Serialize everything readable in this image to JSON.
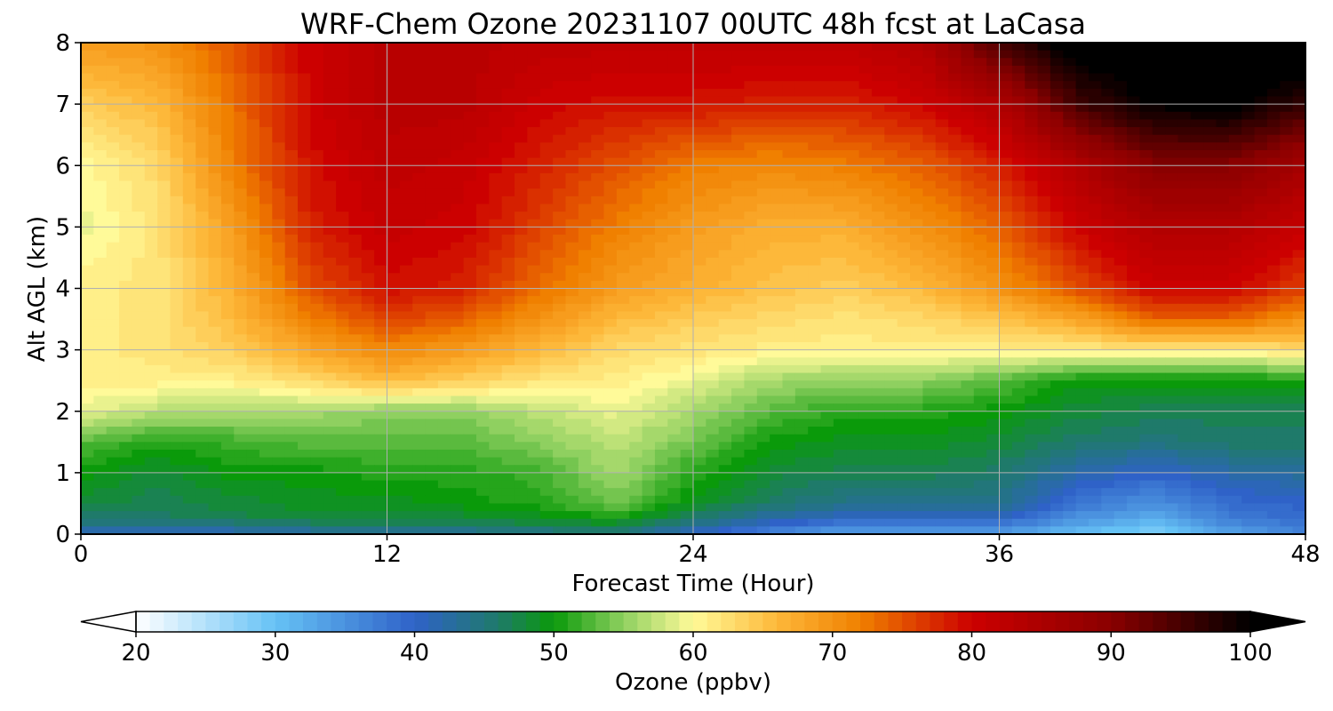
{
  "chart_data": {
    "type": "heatmap",
    "title": "WRF-Chem Ozone  20231107 00UTC 48h fcst at LaCasa",
    "xlabel": "Forecast Time (Hour)",
    "ylabel": "Alt AGL (km)",
    "xlim": [
      0,
      48
    ],
    "ylim": [
      0,
      8
    ],
    "xticks": [
      0,
      12,
      24,
      36,
      48
    ],
    "yticks": [
      0,
      1,
      2,
      3,
      4,
      5,
      6,
      7,
      8
    ],
    "grid": true,
    "colorbar": {
      "label": "Ozone  (ppbv)",
      "min": 20,
      "max": 100,
      "ticks": [
        20,
        30,
        40,
        50,
        60,
        70,
        80,
        90,
        100
      ],
      "extend": "both",
      "colors": [
        "#ffffff",
        "#66c2f5",
        "#2f62c8",
        "#1f7a6a",
        "#0a9a0a",
        "#8fd060",
        "#fffa99",
        "#fdb83a",
        "#f08000",
        "#cc0000",
        "#8a0000",
        "#000000"
      ],
      "stops": [
        20,
        30,
        40,
        46,
        50,
        55,
        60,
        66,
        72,
        80,
        90,
        100
      ]
    },
    "z_units": "ppbv",
    "x_hours": [
      0,
      3,
      6,
      9,
      12,
      15,
      18,
      21,
      24,
      27,
      30,
      33,
      36,
      39,
      42,
      45,
      48
    ],
    "y_km": [
      0,
      0.25,
      0.5,
      1,
      1.5,
      2,
      2.5,
      3,
      3.5,
      4,
      5,
      6,
      7,
      8
    ],
    "values": [
      [
        40,
        40,
        41,
        42,
        42,
        43,
        44,
        45,
        40,
        36,
        33,
        33,
        34,
        30,
        28,
        33,
        36
      ],
      [
        46,
        46,
        47,
        48,
        48,
        48,
        49,
        50,
        46,
        42,
        40,
        40,
        40,
        35,
        32,
        37,
        39
      ],
      [
        48,
        47,
        48,
        49,
        49,
        50,
        51,
        54,
        49,
        46,
        44,
        44,
        44,
        38,
        35,
        39,
        40
      ],
      [
        50,
        48,
        50,
        50,
        51,
        51,
        52,
        56,
        51,
        48,
        47,
        47,
        46,
        42,
        40,
        42,
        43
      ],
      [
        53,
        51,
        52,
        53,
        53,
        53,
        55,
        57,
        54,
        50,
        49,
        49,
        48,
        46,
        45,
        46,
        46
      ],
      [
        59,
        57,
        56,
        56,
        55,
        55,
        57,
        59,
        56,
        53,
        51,
        51,
        50,
        48,
        47,
        47,
        47
      ],
      [
        61,
        61,
        61,
        63,
        66,
        64,
        62,
        61,
        59,
        56,
        55,
        55,
        53,
        50,
        50,
        50,
        50
      ],
      [
        61,
        62,
        64,
        68,
        71,
        69,
        66,
        63,
        62,
        61,
        61,
        61,
        61,
        61,
        62,
        61,
        63
      ],
      [
        61,
        62,
        66,
        72,
        76,
        74,
        70,
        66,
        64,
        63,
        62,
        63,
        65,
        68,
        74,
        74,
        70
      ],
      [
        61,
        62,
        67,
        75,
        79,
        78,
        73,
        69,
        67,
        65,
        64,
        66,
        70,
        75,
        80,
        80,
        76
      ],
      [
        59,
        62,
        69,
        78,
        81,
        80,
        76,
        72,
        69,
        67,
        67,
        70,
        74,
        80,
        84,
        84,
        81
      ],
      [
        60,
        63,
        72,
        79,
        82,
        81,
        78,
        75,
        72,
        71,
        72,
        74,
        78,
        84,
        90,
        90,
        86
      ],
      [
        64,
        66,
        73,
        80,
        83,
        83,
        80,
        79,
        79,
        78,
        78,
        80,
        84,
        95,
        100,
        101,
        96
      ],
      [
        69,
        70,
        75,
        80,
        83,
        83,
        82,
        82,
        82,
        82,
        82,
        84,
        95,
        102,
        103,
        104,
        104
      ]
    ]
  }
}
